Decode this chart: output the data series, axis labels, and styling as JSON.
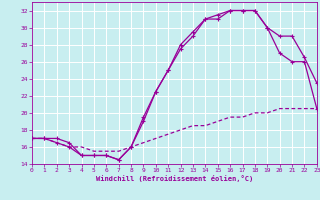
{
  "background_color": "#c8eef0",
  "grid_color": "#ffffff",
  "line_color": "#990099",
  "xlabel": "Windchill (Refroidissement éolien,°C)",
  "xlim": [
    0,
    23
  ],
  "ylim": [
    14,
    33
  ],
  "yticks": [
    14,
    16,
    18,
    20,
    22,
    24,
    26,
    28,
    30,
    32
  ],
  "xticks": [
    0,
    1,
    2,
    3,
    4,
    5,
    6,
    7,
    8,
    9,
    10,
    11,
    12,
    13,
    14,
    15,
    16,
    17,
    18,
    19,
    20,
    21,
    22,
    23
  ],
  "line1_x": [
    0,
    1,
    2,
    3,
    4,
    5,
    6,
    7,
    8,
    9,
    10,
    11,
    12,
    13,
    14,
    15,
    16,
    17,
    18,
    19,
    20,
    21,
    22,
    23
  ],
  "line1_y": [
    17,
    17,
    17,
    16.5,
    15,
    15,
    15,
    14.5,
    16,
    19.5,
    22.5,
    25,
    28,
    29.5,
    31,
    31,
    32,
    32,
    32,
    30,
    29,
    29,
    26.5,
    23.5
  ],
  "line2_x": [
    0,
    1,
    2,
    3,
    4,
    5,
    6,
    7,
    8,
    9,
    10,
    11,
    12,
    13,
    14,
    15,
    16,
    17,
    18,
    19,
    20,
    21,
    22,
    23
  ],
  "line2_y": [
    17,
    17,
    16.5,
    16,
    15,
    15,
    15,
    14.5,
    16,
    19,
    22.5,
    25,
    27.5,
    29,
    31,
    31.5,
    32,
    32,
    32,
    30,
    27,
    26,
    26,
    20.5
  ],
  "line3_x": [
    0,
    1,
    2,
    3,
    4,
    5,
    6,
    7,
    8,
    9,
    10,
    11,
    12,
    13,
    14,
    15,
    16,
    17,
    18,
    19,
    20,
    21,
    22,
    23
  ],
  "line3_y": [
    17,
    17,
    16.5,
    16,
    16,
    15.5,
    15.5,
    15.5,
    16,
    16.5,
    17,
    17.5,
    18,
    18.5,
    18.5,
    19,
    19.5,
    19.5,
    20,
    20,
    20.5,
    20.5,
    20.5,
    20.5
  ]
}
